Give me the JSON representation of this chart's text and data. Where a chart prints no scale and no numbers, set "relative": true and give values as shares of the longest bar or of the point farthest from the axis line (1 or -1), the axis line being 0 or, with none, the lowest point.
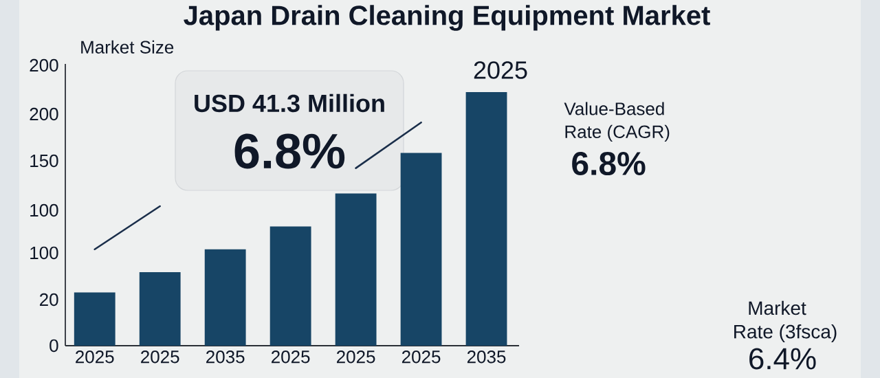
{
  "chart_data": {
    "type": "bar",
    "title": "Japan Drain Cleaning Equipment Market",
    "ylabel": "Market Size",
    "relative": true,
    "categories": [
      "2025",
      "2025",
      "2035",
      "2025",
      "2025",
      "2025",
      "2035"
    ],
    "series": [
      {
        "color": "#174566",
        "values": [
          0.21,
          0.29,
          0.38,
          0.47,
          0.6,
          0.76,
          1
        ]
      },
      {
        "type": "line",
        "color": "#1a2e4a",
        "values": [
          0.38,
          0.55,
          null,
          null,
          0.7,
          0.88,
          null
        ]
      }
    ],
    "annotations": [
      "USD 41.3 Million",
      "6.8%",
      "2025",
      "Value-Based",
      "Rate (CAGR)",
      "6.8%",
      "Market",
      "Rate (3fsca)",
      "6.4%",
      "200",
      "200",
      "150",
      "100",
      "100",
      "20",
      "0"
    ]
  }
}
